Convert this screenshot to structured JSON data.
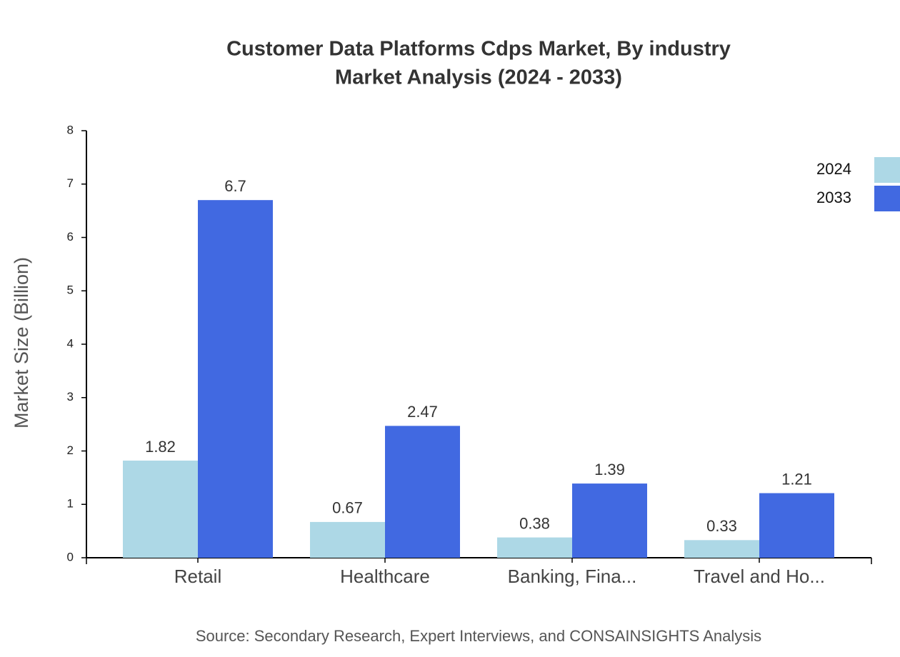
{
  "chart_data": {
    "type": "bar",
    "title": "Customer Data Platforms Cdps Market, By industry",
    "subtitle": "Market Analysis (2024 - 2033)",
    "y_label": "Market Size (Billion)",
    "source": "Source: Secondary Research, Expert Interviews, and CONSAINSIGHTS Analysis",
    "categories": [
      "Retail",
      "Healthcare",
      "Banking, Fina...",
      "Travel and Ho..."
    ],
    "series": [
      {
        "name": "2024",
        "color": "#add8e6",
        "values": [
          1.82,
          0.67,
          0.38,
          0.33
        ]
      },
      {
        "name": "2033",
        "color": "#4169e1",
        "values": [
          6.7,
          2.47,
          1.39,
          1.21
        ]
      }
    ],
    "ylim": [
      0,
      8
    ],
    "yticks": [
      0,
      1,
      2,
      3,
      4,
      5,
      6,
      7,
      8
    ],
    "legend": "top-right"
  }
}
